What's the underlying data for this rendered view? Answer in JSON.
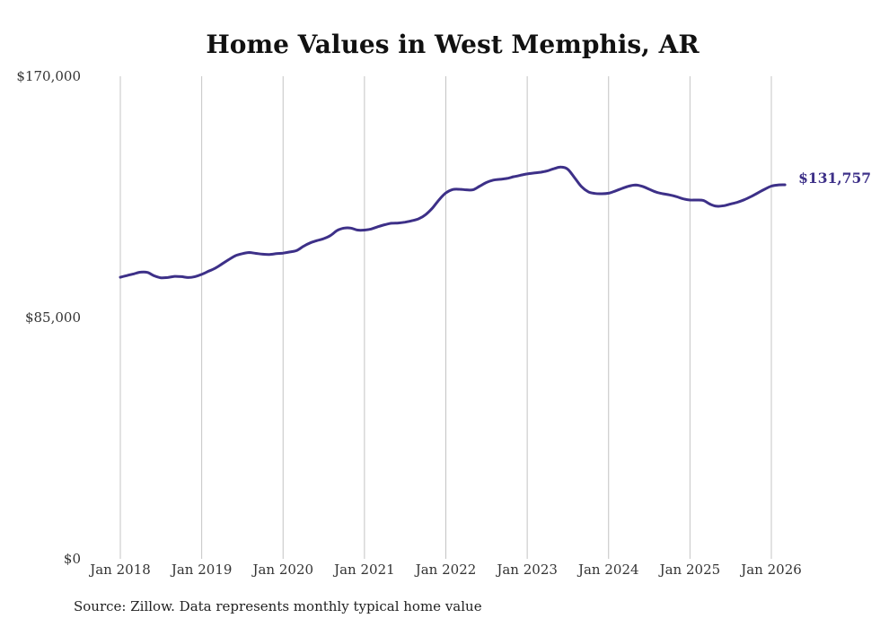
{
  "chart_data": {
    "type": "line",
    "title": "Home Values in West Memphis, AR",
    "xlabel": "",
    "ylabel": "",
    "ylim": [
      0,
      170000
    ],
    "y_ticks": [
      0,
      85000,
      170000
    ],
    "y_tick_labels": [
      "$0",
      "$85,000",
      "$170,000"
    ],
    "x_ticks": [
      2018,
      2019,
      2020,
      2021,
      2022,
      2023,
      2024,
      2025,
      2026
    ],
    "x_tick_labels": [
      "Jan 2018",
      "Jan 2019",
      "Jan 2020",
      "Jan 2021",
      "Jan 2022",
      "Jan 2023",
      "Jan 2024",
      "Jan 2025",
      "Jan 2026"
    ],
    "grid": "vertical",
    "series": [
      {
        "name": "Typical home value",
        "color": "#3d3088",
        "x": [
          2018.0,
          2018.083,
          2018.167,
          2018.25,
          2018.333,
          2018.417,
          2018.5,
          2018.583,
          2018.667,
          2018.75,
          2018.833,
          2018.917,
          2019.0,
          2019.083,
          2019.167,
          2019.25,
          2019.333,
          2019.417,
          2019.5,
          2019.583,
          2019.667,
          2019.75,
          2019.833,
          2019.917,
          2020.0,
          2020.083,
          2020.167,
          2020.25,
          2020.333,
          2020.417,
          2020.5,
          2020.583,
          2020.667,
          2020.75,
          2020.833,
          2020.917,
          2021.0,
          2021.083,
          2021.167,
          2021.25,
          2021.333,
          2021.417,
          2021.5,
          2021.583,
          2021.667,
          2021.75,
          2021.833,
          2021.917,
          2022.0,
          2022.083,
          2022.167,
          2022.25,
          2022.333,
          2022.417,
          2022.5,
          2022.583,
          2022.667,
          2022.75,
          2022.833,
          2022.917,
          2023.0,
          2023.083,
          2023.167,
          2023.25,
          2023.333,
          2023.417,
          2023.5,
          2023.583,
          2023.667,
          2023.75,
          2023.833,
          2023.917,
          2024.0,
          2024.083,
          2024.167,
          2024.25,
          2024.333,
          2024.417,
          2024.5,
          2024.583,
          2024.667,
          2024.75,
          2024.833,
          2024.917,
          2025.0,
          2025.083,
          2025.167,
          2025.25,
          2025.333,
          2025.417,
          2025.5,
          2025.583,
          2025.667,
          2025.75,
          2025.833,
          2025.917,
          2026.0,
          2026.083,
          2026.167
        ],
        "values": [
          99200,
          99800,
          100400,
          101000,
          100900,
          99700,
          99000,
          99100,
          99500,
          99400,
          99100,
          99400,
          100200,
          101300,
          102400,
          103900,
          105400,
          106800,
          107500,
          107900,
          107600,
          107300,
          107200,
          107500,
          107700,
          108100,
          108600,
          110100,
          111300,
          112100,
          112800,
          113900,
          115700,
          116500,
          116500,
          115800,
          115800,
          116200,
          117000,
          117700,
          118200,
          118300,
          118600,
          119100,
          119800,
          121200,
          123500,
          126500,
          128900,
          130100,
          130200,
          130000,
          130000,
          131300,
          132600,
          133400,
          133700,
          134000,
          134600,
          135100,
          135600,
          135900,
          136200,
          136700,
          137500,
          138000,
          137200,
          134200,
          131100,
          129300,
          128700,
          128600,
          128800,
          129600,
          130500,
          131300,
          131700,
          131200,
          130200,
          129200,
          128600,
          128200,
          127600,
          126800,
          126400,
          126400,
          126200,
          124900,
          124200,
          124400,
          125000,
          125600,
          126500,
          127600,
          128900,
          130200,
          131300,
          131700,
          131757
        ]
      }
    ],
    "end_label": "$131,757"
  },
  "footer": {
    "source": "Source: Zillow. Data represents monthly typical home value"
  }
}
